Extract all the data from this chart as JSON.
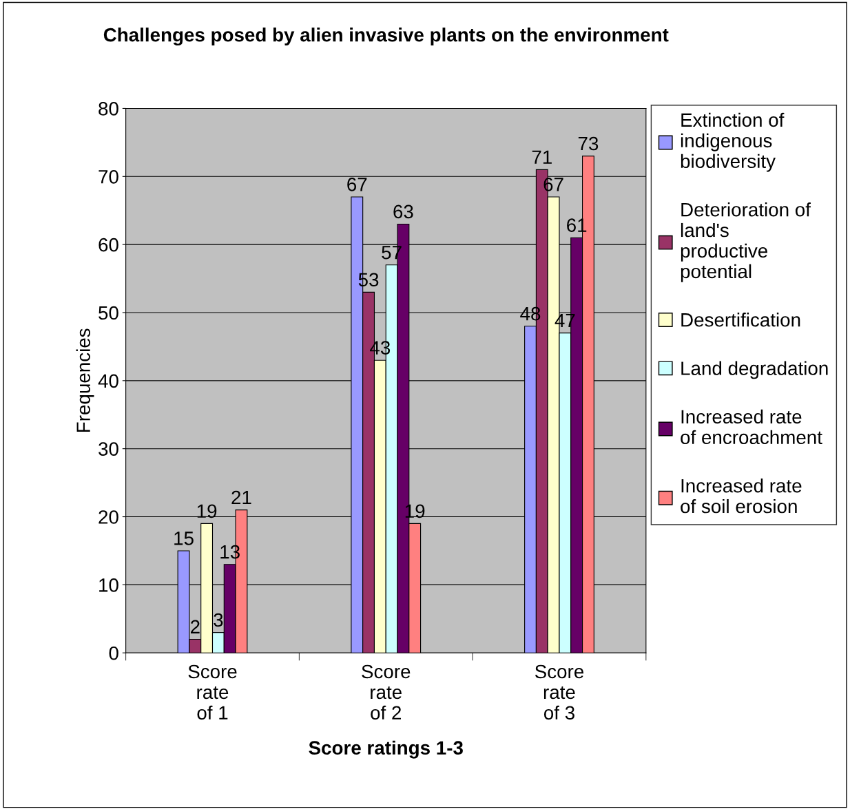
{
  "chart_data": {
    "type": "bar",
    "title": "Challenges posed by alien invasive plants on the environment",
    "xlabel": "Score ratings 1-3",
    "ylabel": "Frequencies",
    "categories": [
      "Score rate of 1",
      "Score rate of 2",
      "Score rate of 3"
    ],
    "series": [
      {
        "name": "Extinction of indigenous biodiversity",
        "color": "#9999ff",
        "values": [
          15,
          67,
          48
        ]
      },
      {
        "name": "Deterioration of land's productive potential",
        "color": "#993366",
        "values": [
          2,
          53,
          71
        ]
      },
      {
        "name": "Desertification",
        "color": "#ffffcc",
        "values": [
          19,
          43,
          67
        ]
      },
      {
        "name": "Land degradation",
        "color": "#ccffff",
        "values": [
          3,
          57,
          47
        ]
      },
      {
        "name": "Increased rate of encroachment",
        "color": "#660066",
        "values": [
          13,
          63,
          61
        ]
      },
      {
        "name": "Increased rate of soil erosion",
        "color": "#ff8080",
        "values": [
          21,
          19,
          73
        ]
      }
    ],
    "ylim": [
      0,
      80
    ],
    "yticks": [
      0,
      10,
      20,
      30,
      40,
      50,
      60,
      70,
      80
    ],
    "grid": "y",
    "legend": "right",
    "data_labels": true
  }
}
